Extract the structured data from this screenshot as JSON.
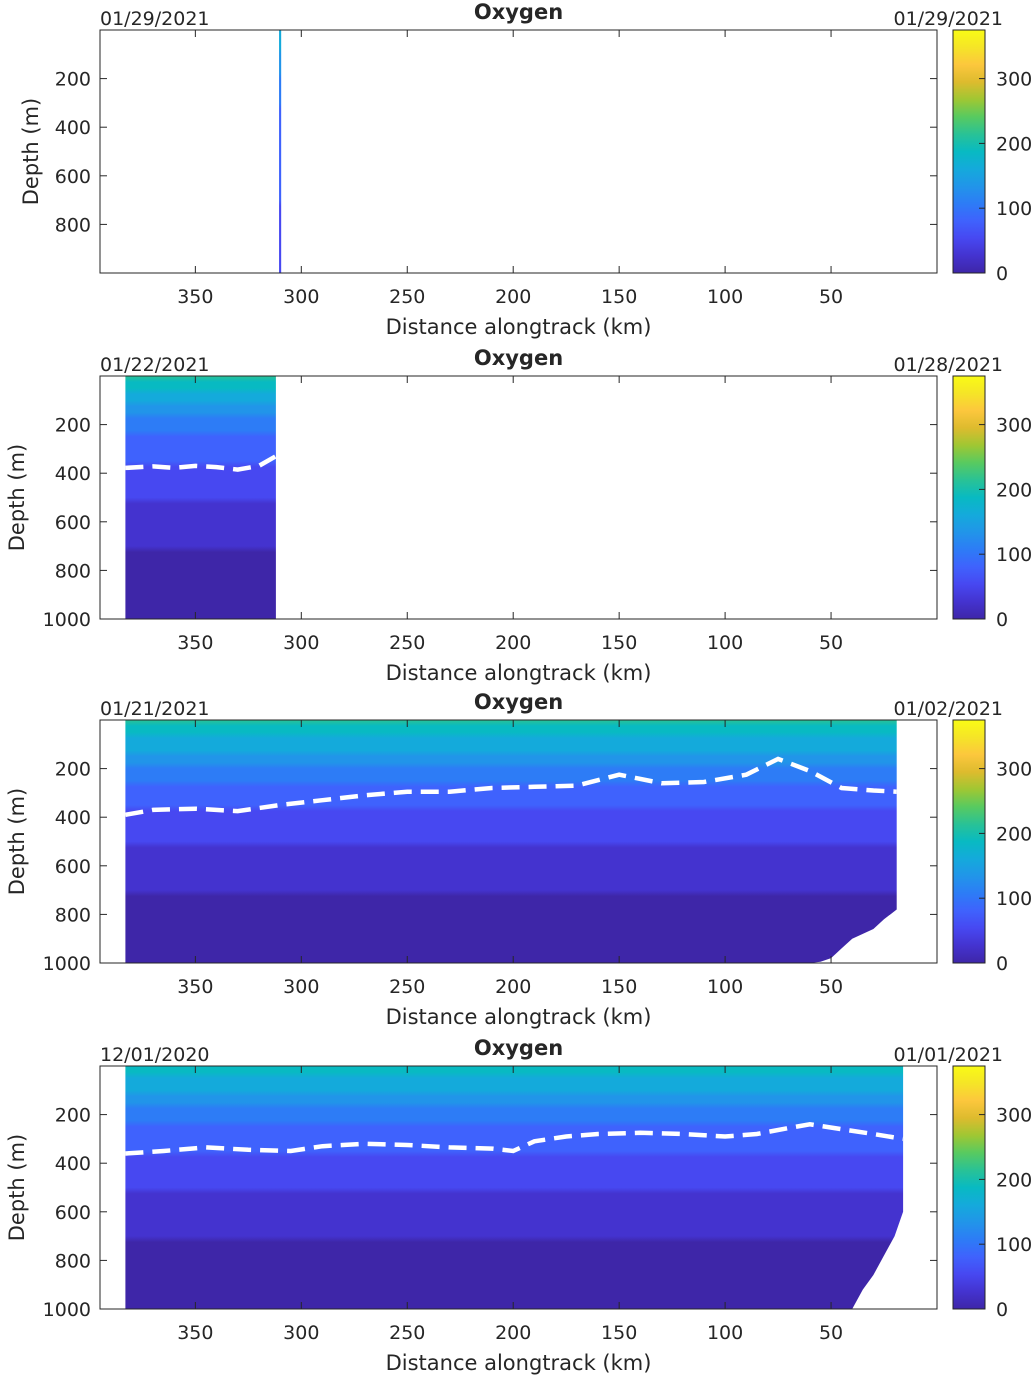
{
  "colormap": [
    "#3e26a8",
    "#4433cf",
    "#4748f1",
    "#3f62fd",
    "#2d7cf6",
    "#2195e9",
    "#14aadb",
    "#08bac2",
    "#29c296",
    "#58ca60",
    "#9fc733",
    "#ddbb2e",
    "#fcc73d",
    "#f5e527",
    "#f9fb15"
  ],
  "chart_data": [
    {
      "type": "heatmap",
      "title": "Oxygen",
      "xlabel": "Distance alongtrack (km)",
      "ylabel": "Depth (m)",
      "date_left": "01/29/2021",
      "date_right": "01/29/2021",
      "xlim": [
        395,
        0
      ],
      "ylim": [
        1000,
        0
      ],
      "xticks": [
        350,
        300,
        250,
        200,
        150,
        100,
        50
      ],
      "yticks": [
        200,
        400,
        600,
        800
      ],
      "clim": [
        0,
        375
      ],
      "cticks": [
        0,
        100,
        200,
        300
      ],
      "data_extent": {
        "x_start": 310.5,
        "x_end": 309.5
      },
      "hypoxia_contour": [],
      "bottom_edge": [],
      "surface_profile": [
        [
          0,
          170
        ],
        [
          150,
          130
        ],
        [
          350,
          95
        ],
        [
          1000,
          60
        ]
      ]
    },
    {
      "type": "heatmap",
      "title": "Oxygen",
      "xlabel": "Distance alongtrack (km)",
      "ylabel": "Depth (m)",
      "date_left": "01/22/2021",
      "date_right": "01/28/2021",
      "xlim": [
        395,
        0
      ],
      "ylim": [
        1000,
        0
      ],
      "xticks": [
        350,
        300,
        250,
        200,
        150,
        100,
        50
      ],
      "yticks": [
        200,
        400,
        600,
        800,
        1000
      ],
      "clim": [
        0,
        375
      ],
      "cticks": [
        0,
        100,
        200,
        300
      ],
      "data_extent": {
        "x_start": 383,
        "x_end": 312
      },
      "hypoxia_contour": [
        [
          383,
          378
        ],
        [
          370,
          372
        ],
        [
          360,
          378
        ],
        [
          350,
          370
        ],
        [
          340,
          375
        ],
        [
          330,
          385
        ],
        [
          320,
          370
        ],
        [
          312,
          330
        ]
      ],
      "bottom_edge": [
        [
          383,
          1000
        ],
        [
          312,
          1000
        ]
      ],
      "surface_profile": [
        [
          0,
          200
        ],
        [
          100,
          160
        ],
        [
          200,
          110
        ],
        [
          300,
          85
        ],
        [
          450,
          60
        ],
        [
          700,
          25
        ],
        [
          1000,
          12
        ]
      ]
    },
    {
      "type": "heatmap",
      "title": "Oxygen",
      "xlabel": "Distance alongtrack (km)",
      "ylabel": "Depth (m)",
      "date_left": "01/21/2021",
      "date_right": "01/02/2021",
      "xlim": [
        395,
        0
      ],
      "ylim": [
        1000,
        0
      ],
      "xticks": [
        350,
        300,
        250,
        200,
        150,
        100,
        50
      ],
      "yticks": [
        200,
        400,
        600,
        800,
        1000
      ],
      "clim": [
        0,
        375
      ],
      "cticks": [
        0,
        100,
        200,
        300
      ],
      "data_extent": {
        "x_start": 383,
        "x_end": 19
      },
      "hypoxia_contour": [
        [
          383,
          390
        ],
        [
          370,
          370
        ],
        [
          350,
          365
        ],
        [
          330,
          375
        ],
        [
          310,
          350
        ],
        [
          290,
          330
        ],
        [
          270,
          310
        ],
        [
          250,
          295
        ],
        [
          230,
          295
        ],
        [
          210,
          280
        ],
        [
          190,
          275
        ],
        [
          170,
          270
        ],
        [
          150,
          225
        ],
        [
          130,
          260
        ],
        [
          110,
          255
        ],
        [
          90,
          225
        ],
        [
          75,
          160
        ],
        [
          60,
          210
        ],
        [
          45,
          280
        ],
        [
          30,
          290
        ],
        [
          19,
          295
        ]
      ],
      "bottom_edge": [
        [
          383,
          1000
        ],
        [
          200,
          1000
        ],
        [
          100,
          1000
        ],
        [
          60,
          1000
        ],
        [
          55,
          995
        ],
        [
          50,
          980
        ],
        [
          45,
          940
        ],
        [
          40,
          900
        ],
        [
          30,
          860
        ],
        [
          25,
          820
        ],
        [
          19,
          780
        ]
      ],
      "surface_profile": [
        [
          0,
          200
        ],
        [
          100,
          165
        ],
        [
          200,
          115
        ],
        [
          300,
          85
        ],
        [
          450,
          60
        ],
        [
          700,
          25
        ],
        [
          1000,
          12
        ]
      ]
    },
    {
      "type": "heatmap",
      "title": "Oxygen",
      "xlabel": "Distance alongtrack (km)",
      "ylabel": "Depth (m)",
      "date_left": "12/01/2020",
      "date_right": "01/01/2021",
      "xlim": [
        395,
        0
      ],
      "ylim": [
        1000,
        0
      ],
      "xticks": [
        350,
        300,
        250,
        200,
        150,
        100,
        50
      ],
      "yticks": [
        200,
        400,
        600,
        800,
        1000
      ],
      "clim": [
        0,
        375
      ],
      "cticks": [
        0,
        100,
        200,
        300
      ],
      "data_extent": {
        "x_start": 383,
        "x_end": 16
      },
      "hypoxia_contour": [
        [
          383,
          360
        ],
        [
          365,
          350
        ],
        [
          345,
          335
        ],
        [
          325,
          345
        ],
        [
          305,
          350
        ],
        [
          290,
          330
        ],
        [
          270,
          320
        ],
        [
          250,
          325
        ],
        [
          230,
          335
        ],
        [
          210,
          340
        ],
        [
          200,
          350
        ],
        [
          190,
          310
        ],
        [
          175,
          290
        ],
        [
          160,
          280
        ],
        [
          140,
          275
        ],
        [
          120,
          280
        ],
        [
          100,
          290
        ],
        [
          85,
          280
        ],
        [
          70,
          255
        ],
        [
          60,
          240
        ],
        [
          45,
          260
        ],
        [
          30,
          280
        ],
        [
          16,
          300
        ]
      ],
      "bottom_edge": [
        [
          383,
          1000
        ],
        [
          300,
          1000
        ],
        [
          200,
          1000
        ],
        [
          100,
          1000
        ],
        [
          40,
          1000
        ],
        [
          35,
          920
        ],
        [
          30,
          860
        ],
        [
          25,
          780
        ],
        [
          20,
          700
        ],
        [
          16,
          600
        ]
      ],
      "surface_profile": [
        [
          0,
          190
        ],
        [
          100,
          155
        ],
        [
          200,
          110
        ],
        [
          300,
          85
        ],
        [
          450,
          60
        ],
        [
          700,
          25
        ],
        [
          1000,
          12
        ]
      ]
    }
  ]
}
